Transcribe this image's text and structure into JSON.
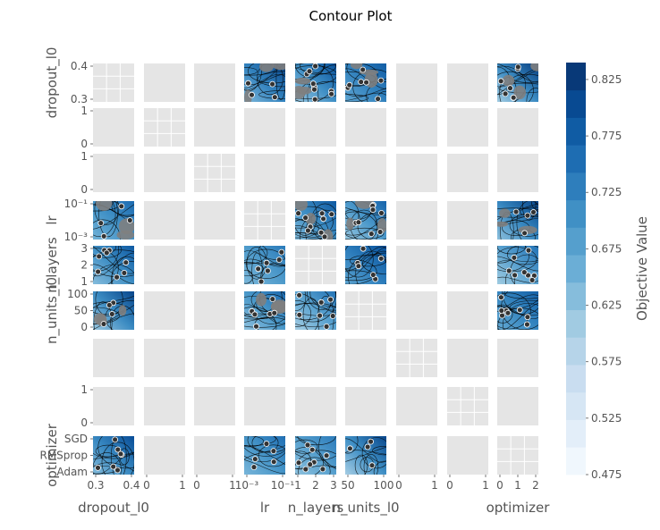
{
  "chart_data": {
    "type": "contour-matrix",
    "title": "Contour Plot",
    "params": [
      "dropout_l0",
      "",
      "",
      "lr",
      "n_layers",
      "n_units_l0",
      "",
      "",
      "optimizer"
    ],
    "row_labels": [
      "dropout_l0",
      "",
      "",
      "lr",
      "n_layers",
      "n_units_l0",
      "",
      "",
      "optimizer"
    ],
    "col_labels": [
      "dropout_l0",
      "",
      "",
      "lr",
      "n_layers",
      "n_units_l0",
      "",
      "",
      "optimizer"
    ],
    "row_ticks": [
      [
        "0.4",
        "0.3"
      ],
      [
        "1",
        "0"
      ],
      [
        "1",
        "0"
      ],
      [
        "10⁻¹",
        "10⁻³"
      ],
      [
        "3",
        "2",
        "1"
      ],
      [
        "100",
        "50",
        "0"
      ],
      [],
      [
        "1",
        "0"
      ],
      [
        "SGD",
        "RMSprop",
        "Adam"
      ]
    ],
    "col_ticks": [
      [
        "0.3",
        "0.4"
      ],
      [
        "0",
        "1"
      ],
      [
        "0",
        "1"
      ],
      [
        "10⁻³",
        "10⁻¹"
      ],
      [
        "1",
        "2",
        "3"
      ],
      [
        "50",
        "100"
      ],
      [
        "0",
        "1"
      ],
      [
        "0",
        "1"
      ],
      [
        "0",
        "1",
        "2"
      ]
    ],
    "filled_cells": [
      [
        0,
        3
      ],
      [
        0,
        4
      ],
      [
        0,
        5
      ],
      [
        0,
        8
      ],
      [
        3,
        0
      ],
      [
        3,
        4
      ],
      [
        3,
        5
      ],
      [
        3,
        8
      ],
      [
        4,
        0
      ],
      [
        4,
        3
      ],
      [
        4,
        5
      ],
      [
        4,
        8
      ],
      [
        5,
        0
      ],
      [
        5,
        3
      ],
      [
        5,
        4
      ],
      [
        5,
        8
      ],
      [
        8,
        0
      ],
      [
        8,
        3
      ],
      [
        8,
        4
      ],
      [
        8,
        5
      ]
    ],
    "colorbar": {
      "label": "Objective Value",
      "colormap": "Blues",
      "min": 0.475,
      "max": 0.84,
      "ticks": [
        0.475,
        0.525,
        0.575,
        0.625,
        0.675,
        0.725,
        0.775,
        0.825
      ],
      "tick_labels": [
        "0.475",
        "0.525",
        "0.575",
        "0.625",
        "0.675",
        "0.725",
        "0.775",
        "0.825"
      ]
    },
    "colors": {
      "panel_bg": "#e5e5e5",
      "grid": "#ffffff",
      "contour_line": "#000000",
      "point_fill": "#333333",
      "grey_patch": "#808080"
    }
  }
}
